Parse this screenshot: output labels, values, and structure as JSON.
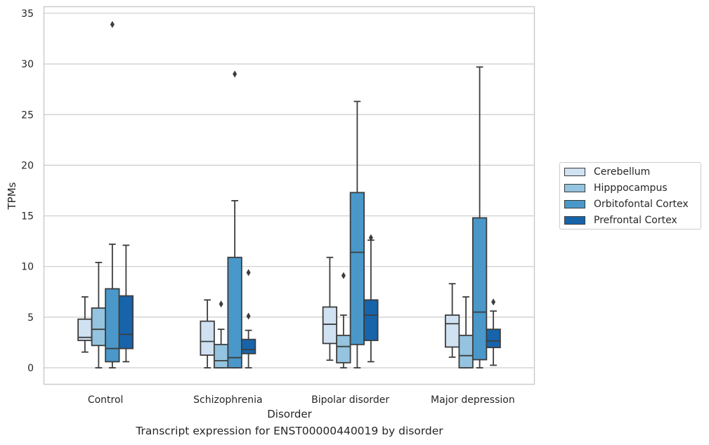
{
  "chart_data": {
    "type": "box",
    "xlabel": "Disorder",
    "ylabel": "TPMs",
    "ylim": [
      -1.6,
      35.6
    ],
    "yticks": [
      0,
      5,
      10,
      15,
      20,
      25,
      30,
      35
    ],
    "grid": "horizontal",
    "legend_position": "right",
    "categories": [
      "Control",
      "Schizophrenia",
      "Bipolar disorder",
      "Major depression"
    ],
    "series": [
      {
        "name": "Cerebellum",
        "color": "#d0e1f2",
        "boxes": [
          {
            "whislo": 1.55,
            "q1": 2.7,
            "med": 3.0,
            "q3": 4.8,
            "whishi": 7.0,
            "fliers": []
          },
          {
            "whislo": 0.0,
            "q1": 1.25,
            "med": 2.6,
            "q3": 4.6,
            "whishi": 6.7,
            "fliers": []
          },
          {
            "whislo": 0.75,
            "q1": 2.4,
            "med": 4.3,
            "q3": 6.0,
            "whishi": 10.9,
            "fliers": []
          },
          {
            "whislo": 1.05,
            "q1": 2.05,
            "med": 4.35,
            "q3": 5.2,
            "whishi": 8.3,
            "fliers": []
          }
        ]
      },
      {
        "name": "Hipppocampus",
        "color": "#94c4df",
        "boxes": [
          {
            "whislo": 0.0,
            "q1": 2.2,
            "med": 3.8,
            "q3": 5.9,
            "whishi": 10.4,
            "fliers": []
          },
          {
            "whislo": 0.0,
            "q1": 0.0,
            "med": 0.7,
            "q3": 2.3,
            "whishi": 3.8,
            "fliers": [
              6.3
            ]
          },
          {
            "whislo": 0.0,
            "q1": 0.5,
            "med": 2.1,
            "q3": 3.2,
            "whishi": 5.2,
            "fliers": [
              9.1
            ]
          },
          {
            "whislo": 0.0,
            "q1": 0.0,
            "med": 1.2,
            "q3": 3.2,
            "whishi": 7.0,
            "fliers": []
          }
        ]
      },
      {
        "name": "Orbitofontal Cortex",
        "color": "#4a98c9",
        "boxes": [
          {
            "whislo": 0.0,
            "q1": 0.6,
            "med": 1.9,
            "q3": 7.8,
            "whishi": 12.2,
            "fliers": [
              33.9
            ]
          },
          {
            "whislo": 0.0,
            "q1": 0.0,
            "med": 1.0,
            "q3": 10.9,
            "whishi": 16.5,
            "fliers": [
              29.0
            ]
          },
          {
            "whislo": 0.0,
            "q1": 2.3,
            "med": 11.4,
            "q3": 17.3,
            "whishi": 26.3,
            "fliers": []
          },
          {
            "whislo": 0.0,
            "q1": 0.8,
            "med": 5.5,
            "q3": 14.8,
            "whishi": 29.7,
            "fliers": []
          }
        ]
      },
      {
        "name": "Prefrontal Cortex",
        "color": "#1764ab",
        "boxes": [
          {
            "whislo": 0.6,
            "q1": 1.9,
            "med": 3.3,
            "q3": 7.1,
            "whishi": 12.1,
            "fliers": []
          },
          {
            "whislo": 0.0,
            "q1": 1.4,
            "med": 1.8,
            "q3": 2.8,
            "whishi": 3.7,
            "fliers": [
              9.4,
              5.1
            ]
          },
          {
            "whislo": 0.6,
            "q1": 2.7,
            "med": 5.2,
            "q3": 6.7,
            "whishi": 12.6,
            "fliers": [
              12.85
            ]
          },
          {
            "whislo": 0.25,
            "q1": 2.0,
            "med": 2.65,
            "q3": 3.8,
            "whishi": 5.6,
            "fliers": [
              6.5
            ]
          }
        ]
      }
    ]
  },
  "caption": "Transcript expression for ENST00000440019 by disorder"
}
